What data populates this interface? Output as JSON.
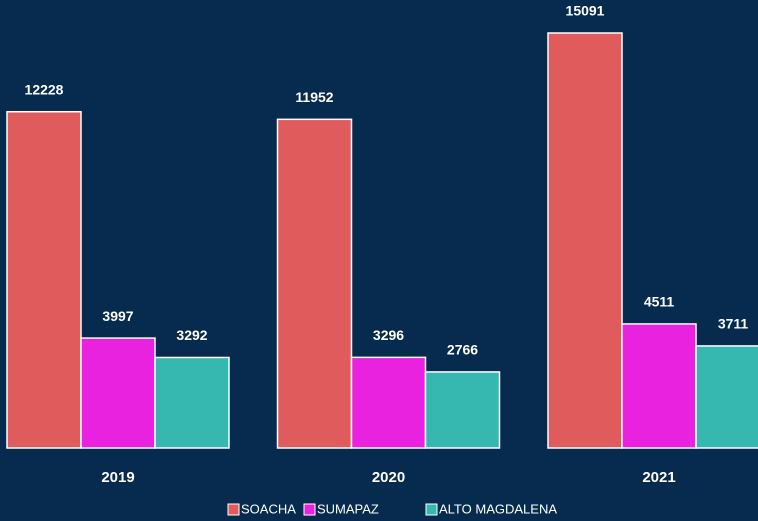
{
  "chart_data": {
    "type": "bar",
    "categories": [
      "2019",
      "2020",
      "2021"
    ],
    "series": [
      {
        "name": "SOACHA",
        "color": "#e05c5c",
        "values": [
          12228,
          11952,
          15091
        ]
      },
      {
        "name": "SUMAPAZ",
        "color": "#e822de",
        "values": [
          3997,
          3296,
          4511
        ]
      },
      {
        "name": "ALTO MAGDALENA",
        "color": "#36b8b0",
        "values": [
          3292,
          2766,
          3711
        ]
      }
    ]
  }
}
